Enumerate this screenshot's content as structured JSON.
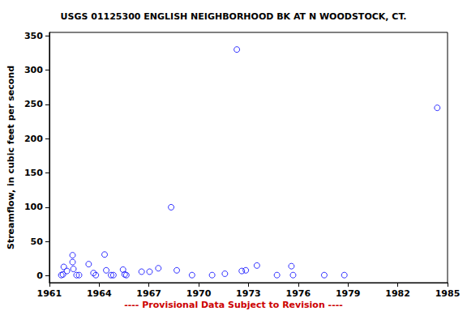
{
  "chart_data": {
    "type": "scatter",
    "title": "USGS 01125300 ENGLISH NEIGHBORHOOD BK AT N WOODSTOCK, CT.",
    "ylabel": "Streamflow, in cubic feet per second",
    "annotation": "---- Provisional Data Subject to Revision ----",
    "x": [
      1961.72,
      1961.82,
      1961.87,
      1962.06,
      1962.4,
      1962.4,
      1962.45,
      1962.64,
      1962.79,
      1963.37,
      1963.66,
      1963.8,
      1964.33,
      1964.43,
      1964.72,
      1964.86,
      1965.44,
      1965.54,
      1965.64,
      1966.56,
      1967.04,
      1967.57,
      1968.34,
      1968.68,
      1969.6,
      1970.81,
      1971.58,
      1972.3,
      1972.6,
      1972.84,
      1973.51,
      1974.72,
      1975.59,
      1975.69,
      1977.57,
      1978.78,
      1984.38
    ],
    "values": [
      1,
      2,
      13,
      7,
      30,
      20,
      10,
      1,
      1,
      17,
      4,
      1,
      31,
      8,
      1,
      1,
      9,
      2,
      1,
      6,
      6,
      11,
      100,
      8,
      1,
      1,
      3,
      330,
      7,
      8,
      15,
      1,
      14,
      1,
      1,
      1,
      245
    ],
    "color": "#0000ff",
    "marker": "circle_open",
    "xlim": [
      1961,
      1985
    ],
    "xticks": [
      1961,
      1964,
      1967,
      1970,
      1973,
      1976,
      1979,
      1982,
      1985
    ],
    "ylim": [
      -10,
      355
    ],
    "yticks": [
      0,
      50,
      100,
      150,
      200,
      250,
      300,
      350
    ],
    "grid": false
  }
}
